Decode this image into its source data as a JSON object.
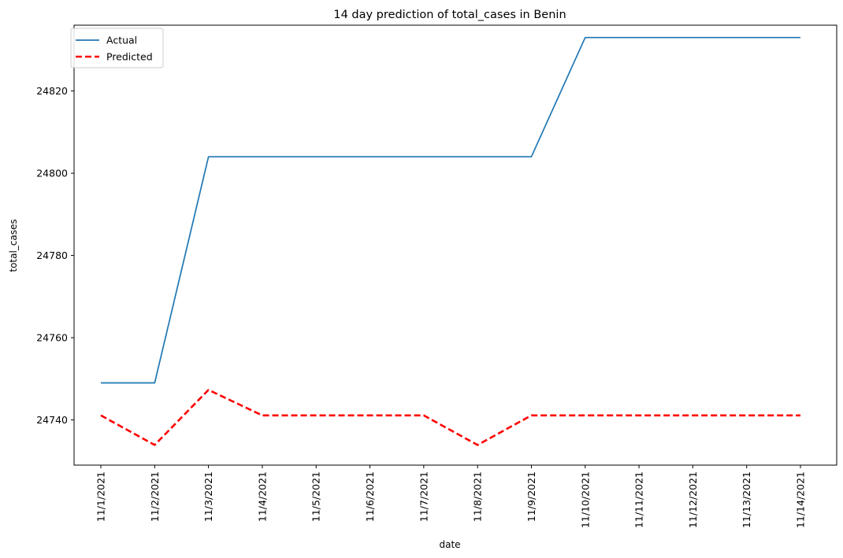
{
  "chart_data": {
    "type": "line",
    "title": "14 day prediction of total_cases in Benin",
    "xlabel": "date",
    "ylabel": "total_cases",
    "categories": [
      "11/1/2021",
      "11/2/2021",
      "11/3/2021",
      "11/4/2021",
      "11/5/2021",
      "11/6/2021",
      "11/7/2021",
      "11/8/2021",
      "11/9/2021",
      "11/10/2021",
      "11/11/2021",
      "11/12/2021",
      "11/13/2021",
      "11/14/2021"
    ],
    "ylim": [
      24729,
      24836
    ],
    "yticks": [
      24740,
      24760,
      24780,
      24800,
      24820
    ],
    "grid": false,
    "legend_position": "upper left",
    "series": [
      {
        "name": "Actual",
        "color": "#1f77b4",
        "style": "solid",
        "values": [
          24749,
          24749,
          24804,
          24804,
          24804,
          24804,
          24804,
          24804,
          24804,
          24833,
          24833,
          24833,
          24833,
          24833
        ]
      },
      {
        "name": "Predicted",
        "color": "#ff0000",
        "style": "dashed",
        "values": [
          24741.1,
          24733.9,
          24747.3,
          24741.1,
          24741.1,
          24741.1,
          24741.1,
          24733.9,
          24741.1,
          24741.1,
          24741.1,
          24741.1,
          24741.1,
          24741.1
        ]
      }
    ]
  }
}
